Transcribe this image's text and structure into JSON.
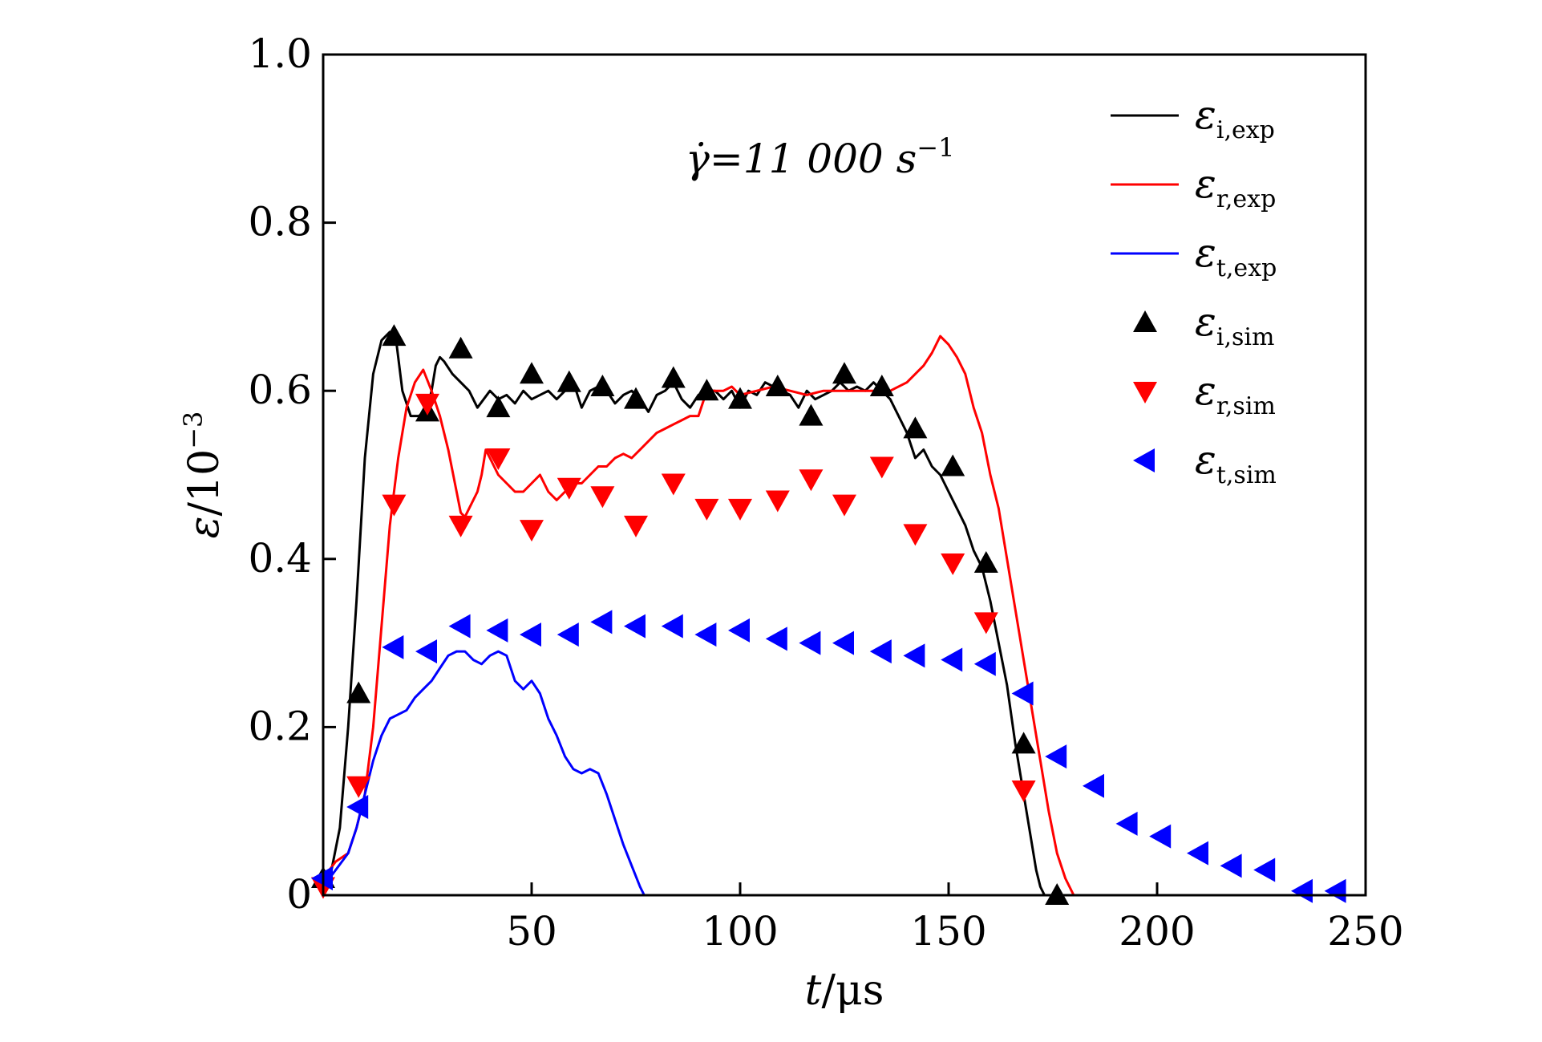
{
  "chart_data": {
    "type": "line",
    "xlabel": {
      "var": "t",
      "unit": "/μs"
    },
    "ylabel": {
      "var": "ε",
      "unit": "/10",
      "exp": "−3"
    },
    "xlim": [
      0,
      250
    ],
    "ylim": [
      0,
      1.0
    ],
    "xticks": [
      50,
      100,
      150,
      200,
      250
    ],
    "xtick_labels": [
      "50",
      "100",
      "150",
      "200",
      "250"
    ],
    "yticks": [
      0,
      0.2,
      0.4,
      0.6,
      0.8,
      1.0
    ],
    "ytick_labels": [
      "0",
      "0.2",
      "0.4",
      "0.6",
      "0.8",
      "1.0"
    ],
    "grid": false,
    "legend_position": "top-right",
    "annotation": {
      "prefix": "γ̇=11 000 s",
      "exp": "−1"
    },
    "series": [
      {
        "name": "ε_i,exp",
        "label_main": "ε",
        "label_sub": "i,exp",
        "kind": "line",
        "color": "#000000",
        "x": [
          0,
          2,
          4,
          6,
          8,
          10,
          12,
          14,
          16,
          17.5,
          19,
          21,
          23,
          25,
          26,
          27,
          28,
          29,
          31,
          33,
          35,
          37,
          40,
          42,
          44,
          46,
          48,
          50,
          52,
          54,
          56,
          58,
          60,
          62,
          64,
          66,
          68,
          70,
          72,
          74,
          76,
          78,
          80,
          82,
          84,
          86,
          88,
          90,
          92,
          94,
          96,
          98,
          100,
          102,
          104,
          106,
          108,
          110,
          112,
          114,
          116,
          118,
          120,
          122,
          124,
          126,
          128,
          130,
          132,
          134,
          136,
          138,
          140,
          142,
          144,
          146,
          148,
          150,
          152,
          154,
          156,
          158,
          160,
          162,
          164,
          166,
          168,
          170,
          171,
          172,
          173
        ],
        "values": [
          0.02,
          0.03,
          0.08,
          0.2,
          0.35,
          0.52,
          0.62,
          0.66,
          0.67,
          0.66,
          0.6,
          0.57,
          0.57,
          0.58,
          0.6,
          0.63,
          0.64,
          0.635,
          0.62,
          0.61,
          0.6,
          0.58,
          0.6,
          0.59,
          0.595,
          0.585,
          0.6,
          0.59,
          0.595,
          0.6,
          0.59,
          0.6,
          0.61,
          0.58,
          0.6,
          0.605,
          0.6,
          0.585,
          0.595,
          0.6,
          0.59,
          0.575,
          0.595,
          0.6,
          0.61,
          0.59,
          0.58,
          0.595,
          0.6,
          0.6,
          0.59,
          0.6,
          0.58,
          0.6,
          0.595,
          0.61,
          0.605,
          0.6,
          0.595,
          0.58,
          0.6,
          0.59,
          0.595,
          0.6,
          0.61,
          0.6,
          0.605,
          0.6,
          0.61,
          0.6,
          0.59,
          0.57,
          0.55,
          0.52,
          0.53,
          0.51,
          0.5,
          0.48,
          0.46,
          0.44,
          0.41,
          0.39,
          0.35,
          0.3,
          0.25,
          0.18,
          0.12,
          0.06,
          0.03,
          0.01,
          0.0
        ]
      },
      {
        "name": "ε_r,exp",
        "label_main": "ε",
        "label_sub": "r,exp",
        "kind": "line",
        "color": "#ff0000",
        "x": [
          0,
          3,
          6,
          8,
          10,
          12,
          14,
          16,
          18,
          20,
          22,
          24,
          26,
          28,
          30,
          32,
          33,
          34,
          35,
          37,
          38,
          39,
          40,
          42,
          44,
          46,
          48,
          50,
          52,
          54,
          56,
          58,
          60,
          62,
          64,
          66,
          68,
          70,
          72,
          74,
          76,
          78,
          80,
          82,
          84,
          86,
          88,
          90,
          92,
          94,
          96,
          98,
          100,
          104,
          108,
          112,
          116,
          120,
          124,
          128,
          132,
          136,
          140,
          144,
          146,
          148,
          150,
          152,
          154,
          156,
          158,
          160,
          162,
          164,
          166,
          168,
          170,
          172,
          174,
          176,
          178,
          180
        ],
        "values": [
          0.02,
          0.04,
          0.05,
          0.08,
          0.12,
          0.2,
          0.32,
          0.44,
          0.52,
          0.58,
          0.61,
          0.625,
          0.6,
          0.57,
          0.53,
          0.48,
          0.455,
          0.45,
          0.46,
          0.48,
          0.5,
          0.53,
          0.52,
          0.5,
          0.49,
          0.48,
          0.48,
          0.49,
          0.5,
          0.48,
          0.47,
          0.48,
          0.49,
          0.49,
          0.5,
          0.51,
          0.51,
          0.52,
          0.525,
          0.52,
          0.53,
          0.54,
          0.55,
          0.555,
          0.56,
          0.565,
          0.57,
          0.57,
          0.6,
          0.6,
          0.6,
          0.605,
          0.595,
          0.6,
          0.605,
          0.6,
          0.595,
          0.6,
          0.6,
          0.6,
          0.6,
          0.6,
          0.61,
          0.63,
          0.645,
          0.665,
          0.655,
          0.64,
          0.62,
          0.58,
          0.55,
          0.5,
          0.46,
          0.4,
          0.34,
          0.28,
          0.22,
          0.16,
          0.1,
          0.05,
          0.02,
          0.0
        ]
      },
      {
        "name": "ε_t,exp",
        "label_main": "ε",
        "label_sub": "t,exp",
        "kind": "line",
        "color": "#0000ff",
        "x": [
          0,
          3,
          6,
          8,
          10,
          12,
          14,
          16,
          18,
          20,
          22,
          24,
          26,
          28,
          30,
          32,
          34,
          36,
          38,
          40,
          42,
          44,
          46,
          48,
          50,
          52,
          54,
          56,
          58,
          60,
          62,
          64,
          66,
          68,
          70,
          72,
          74,
          76,
          77
        ],
        "values": [
          0.01,
          0.03,
          0.05,
          0.08,
          0.12,
          0.16,
          0.19,
          0.21,
          0.215,
          0.22,
          0.235,
          0.245,
          0.255,
          0.27,
          0.285,
          0.29,
          0.29,
          0.28,
          0.275,
          0.285,
          0.29,
          0.285,
          0.255,
          0.245,
          0.255,
          0.24,
          0.21,
          0.19,
          0.165,
          0.15,
          0.145,
          0.15,
          0.145,
          0.12,
          0.09,
          0.06,
          0.035,
          0.01,
          0.0
        ]
      },
      {
        "name": "ε_i,sim",
        "label_main": "ε",
        "label_sub": "i,sim",
        "kind": "scatter",
        "marker": "triangle-up",
        "color": "#000000",
        "x": [
          0,
          8.5,
          17,
          25,
          33,
          42,
          50,
          59,
          67,
          75,
          84,
          92,
          100,
          109,
          117,
          125,
          134,
          142,
          151,
          159,
          168,
          176
        ],
        "values": [
          0.02,
          0.24,
          0.665,
          0.575,
          0.65,
          0.58,
          0.62,
          0.61,
          0.605,
          0.59,
          0.615,
          0.6,
          0.59,
          0.605,
          0.57,
          0.62,
          0.605,
          0.555,
          0.51,
          0.395,
          0.18,
          0.0
        ]
      },
      {
        "name": "ε_r,sim",
        "label_main": "ε",
        "label_sub": "r,sim",
        "kind": "scatter",
        "marker": "triangle-down",
        "color": "#ff0000",
        "x": [
          0,
          8.5,
          17,
          25,
          33,
          42,
          50,
          59,
          67,
          75,
          84,
          92,
          100,
          109,
          117,
          125,
          134,
          142,
          151,
          159,
          168
        ],
        "values": [
          0.01,
          0.13,
          0.465,
          0.585,
          0.44,
          0.52,
          0.435,
          0.485,
          0.475,
          0.44,
          0.49,
          0.46,
          0.46,
          0.47,
          0.495,
          0.465,
          0.51,
          0.43,
          0.395,
          0.325,
          0.125
        ]
      },
      {
        "name": "ε_t,sim",
        "label_main": "ε",
        "label_sub": "t,sim",
        "kind": "scatter",
        "marker": "triangle-left",
        "color": "#0000ff",
        "x": [
          0,
          8.5,
          17,
          25,
          33,
          42,
          50,
          59,
          67,
          75,
          84,
          92,
          100,
          109,
          117,
          125,
          134,
          142,
          151,
          159,
          168,
          176,
          185,
          193,
          201,
          210,
          218,
          226,
          235,
          243
        ],
        "values": [
          0.02,
          0.105,
          0.295,
          0.29,
          0.32,
          0.315,
          0.31,
          0.31,
          0.325,
          0.32,
          0.32,
          0.31,
          0.315,
          0.305,
          0.3,
          0.3,
          0.29,
          0.285,
          0.28,
          0.275,
          0.24,
          0.165,
          0.13,
          0.085,
          0.07,
          0.05,
          0.035,
          0.03,
          0.005,
          0.005
        ]
      }
    ]
  }
}
